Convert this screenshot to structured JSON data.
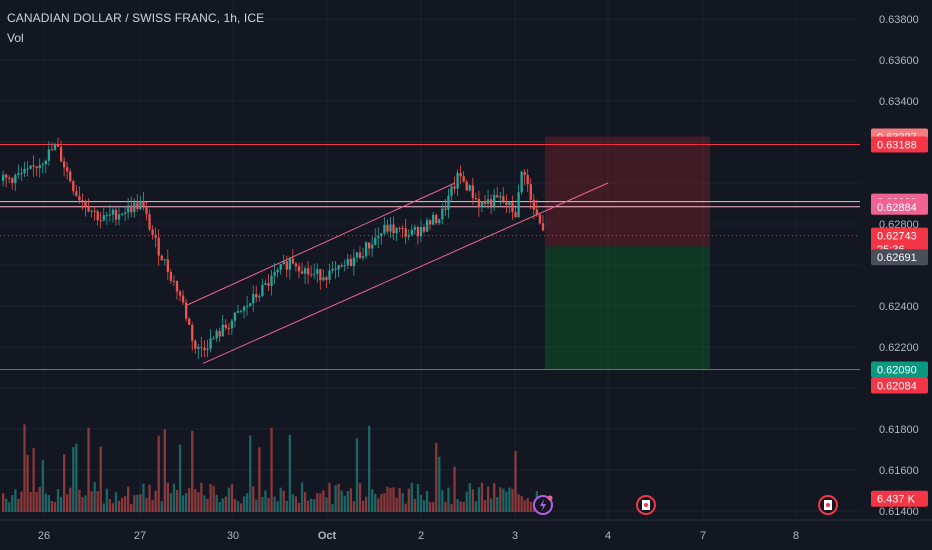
{
  "header": {
    "title": "CANADIAN DOLLAR / SWISS FRANC, 1h, ICE",
    "indicator": "Vol"
  },
  "colors": {
    "background": "#131722",
    "up": "#26a69a",
    "down": "#ef5350",
    "line": "#f23645",
    "channel": "#f06292",
    "stop_zone": "rgba(178,40,51,0.28)",
    "target_zone": "rgba(8,153,42,0.25)"
  },
  "chart_data": {
    "type": "candlestick",
    "symbol": "CADCHF",
    "timeframe": "1h",
    "y_axis_ticks": [
      0.638,
      0.636,
      0.634,
      0.632,
      0.63,
      0.628,
      0.626,
      0.624,
      0.622,
      0.62,
      0.618,
      0.616,
      0.614
    ],
    "y_axis_tick_labels": [
      "0.63800",
      "0.63600",
      "0.63400",
      "",
      "",
      "0.62800",
      "",
      "0.62400",
      "0.62200",
      "",
      "0.61800",
      "0.61600",
      "0.61400"
    ],
    "ylim": [
      0.6137,
      0.6391
    ],
    "x_axis_labels": [
      "26",
      "27",
      "30",
      "Oct",
      "2",
      "3",
      "4",
      "7",
      "8"
    ],
    "price_tags": [
      {
        "label": "0.63227",
        "value": 0.63227,
        "color": "#f77c80"
      },
      {
        "label": "0.63188",
        "value": 0.63188,
        "color": "#f23645"
      },
      {
        "label": "0.62909",
        "value": 0.62909,
        "color": "#f06292"
      },
      {
        "label": "0.62884",
        "value": 0.62884,
        "color": "#f06292"
      },
      {
        "label": "0.62743",
        "value": 0.62743,
        "color": "#f23645"
      },
      {
        "label": "25:36",
        "value": 0.62678,
        "color": "#f23645"
      },
      {
        "label": "0.62691",
        "value": 0.62638,
        "color": "#4a4e5a"
      },
      {
        "label": "0.62090",
        "value": 0.6209,
        "color": "#089981"
      },
      {
        "label": "0.62084",
        "value": 0.62012,
        "color": "#f23645"
      },
      {
        "label": "6.437 K",
        "value": 0.6146,
        "color": "#f23645"
      }
    ],
    "horizontal_lines": [
      {
        "name": "resistance",
        "value": 0.63188
      },
      {
        "name": "level-1",
        "value": 0.62909
      },
      {
        "name": "level-2",
        "value": 0.62884
      },
      {
        "name": "support",
        "value": 0.6209
      }
    ],
    "current_price": 0.62743,
    "trade_position": {
      "entry": 0.62691,
      "stop": 0.63227,
      "target": 0.6209
    },
    "event_icons": [
      "lightning-event-icon",
      "canada-flag-event-icon",
      "canada-flag-event-icon"
    ]
  }
}
